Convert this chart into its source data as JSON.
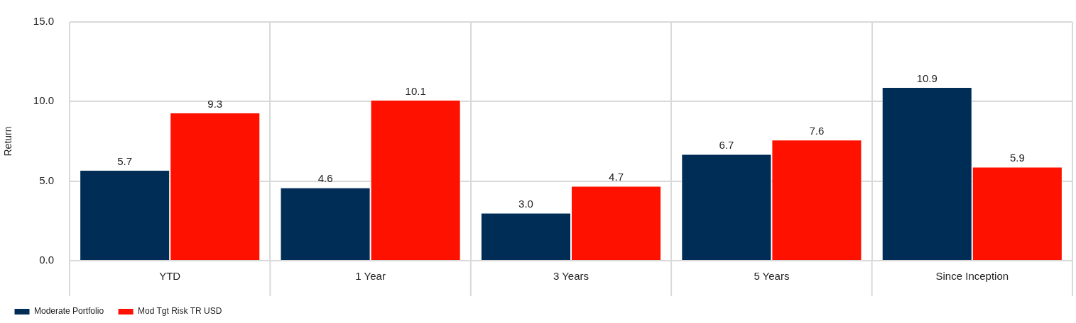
{
  "chart_data": {
    "type": "bar",
    "ylabel": "Return",
    "categories": [
      "YTD",
      "1 Year",
      "3 Years",
      "5 Years",
      "Since Inception"
    ],
    "series": [
      {
        "name": "Moderate Portfolio",
        "color": "#002d56",
        "values": [
          5.7,
          4.6,
          3.0,
          6.7,
          10.9
        ],
        "value_labels": [
          "5.7",
          "4.6",
          "3.0",
          "6.7",
          "10.9"
        ]
      },
      {
        "name": "Mod Tgt Risk TR USD",
        "color": "#ff1100",
        "values": [
          9.3,
          10.1,
          4.7,
          7.6,
          5.9
        ],
        "value_labels": [
          "9.3",
          "10.1",
          "4.7",
          "7.6",
          "5.9"
        ]
      }
    ],
    "ylim": [
      0,
      15
    ],
    "yticks": [
      {
        "value": 0,
        "label": "0.0"
      },
      {
        "value": 5,
        "label": "5.0"
      },
      {
        "value": 10,
        "label": "10.0"
      },
      {
        "value": 15,
        "label": "15.0"
      }
    ],
    "grid": true,
    "legend": "bottom"
  }
}
